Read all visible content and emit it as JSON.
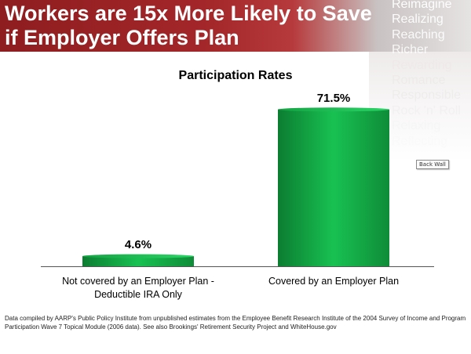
{
  "header": {
    "title_line1": "Workers are 15x More Likely to Save",
    "title_line2": "if Employer Offers Plan",
    "words": [
      "Reimagine",
      "Realizing",
      "Reaching",
      "Richer",
      "Rewarding",
      "Romance",
      "Responsible",
      "Rock 'n' Roll",
      "Relaxing",
      "Reflecting"
    ],
    "color": "#a4272a"
  },
  "tooltip": "Back Wall",
  "chart_data": {
    "type": "bar",
    "title": "Participation Rates",
    "categories": [
      "Not covered by an Employer Plan - Deductible IRA Only",
      "Covered by an Employer Plan"
    ],
    "category_lines": [
      [
        "Not covered by an Employer Plan -",
        "Deductible IRA Only"
      ],
      [
        "Covered by an Employer Plan"
      ]
    ],
    "values": [
      4.6,
      71.5
    ],
    "data_labels": [
      "4.6%",
      "71.5%"
    ],
    "ylim": [
      0,
      100
    ],
    "grid": false,
    "bar_color": "#1db954"
  },
  "footnote": {
    "line1": "Data compiled by AARP's Public Policy Institute from unpublished  estimates from the Employee Benefit Research Institute of the 2004 Survey of Income and Program",
    "line2": "Participation Wave 7 Topical Module (2006 data). See also Brookings' Retirement Security Project and WhiteHouse.gov"
  }
}
